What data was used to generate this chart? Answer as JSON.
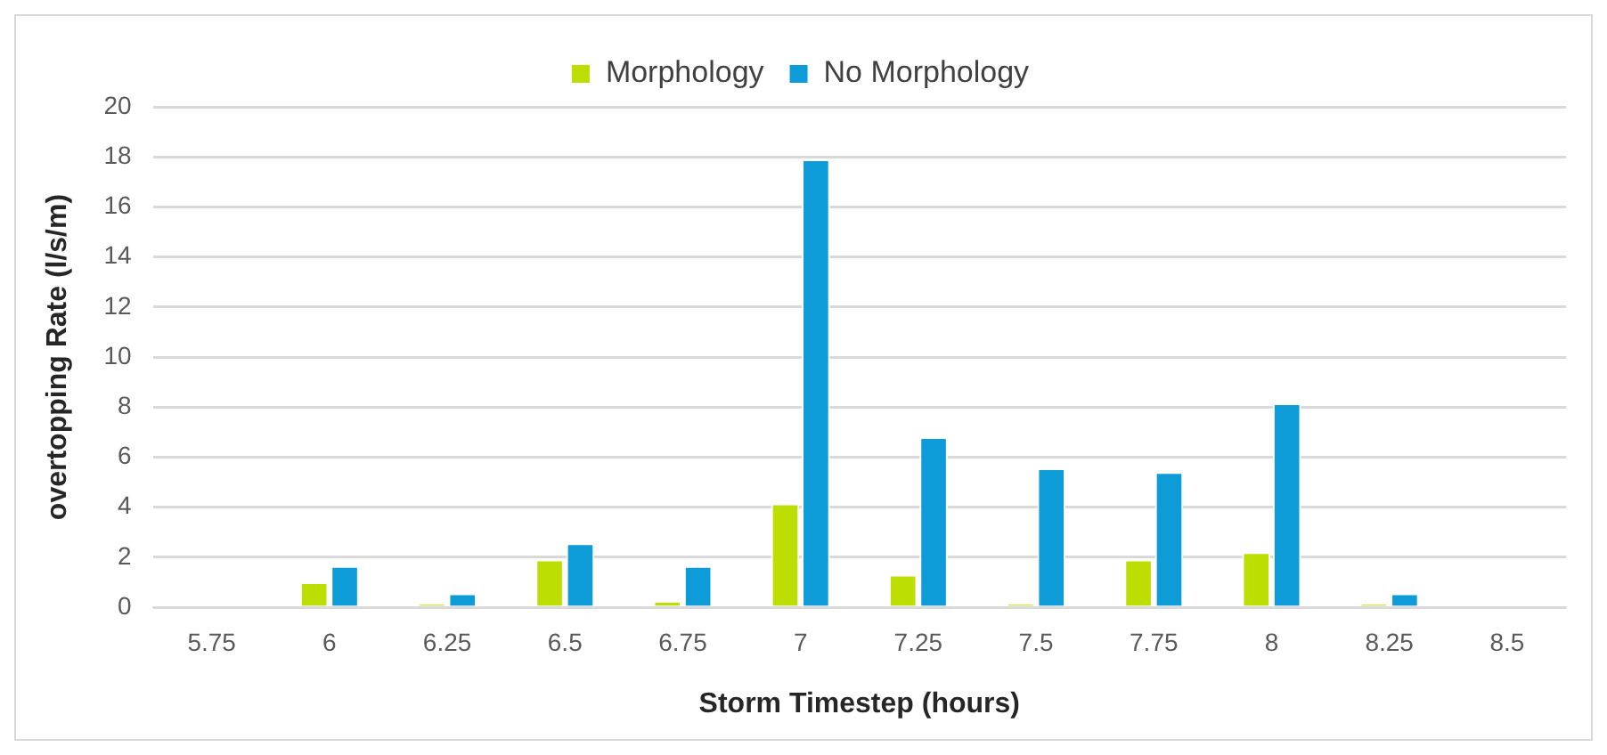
{
  "chart_data": {
    "type": "bar",
    "xlabel": "Storm Timestep (hours)",
    "ylabel": "overtopping Rate (l/s/m)",
    "categories": [
      "5.75",
      "6",
      "6.25",
      "6.5",
      "6.75",
      "7",
      "7.25",
      "7.5",
      "7.75",
      "8",
      "8.25",
      "8.5"
    ],
    "series": [
      {
        "name": "Morphology",
        "color": "#bedd00",
        "values": [
          0,
          1.0,
          0.15,
          1.9,
          0.25,
          4.15,
          1.3,
          0.15,
          1.9,
          2.2,
          0.15,
          0
        ]
      },
      {
        "name": "No Morphology",
        "color": "#0e9cd9",
        "values": [
          0,
          1.65,
          0.55,
          2.55,
          1.65,
          17.9,
          6.8,
          5.55,
          5.4,
          8.15,
          0.55,
          0
        ]
      }
    ],
    "ylim": [
      0,
      20
    ],
    "yticks": [
      0,
      2,
      4,
      6,
      8,
      10,
      12,
      14,
      16,
      18,
      20
    ],
    "grid": "y",
    "legend": "top"
  }
}
